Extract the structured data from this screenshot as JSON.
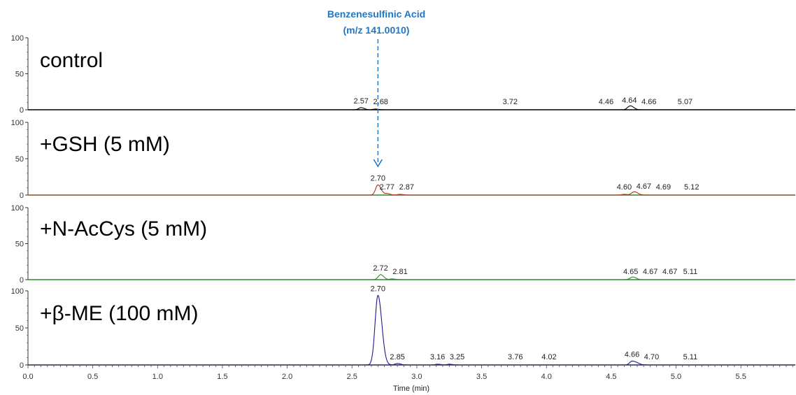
{
  "chart_data": {
    "type": "line",
    "xlabel": "Time (min)",
    "xlim": [
      0.0,
      5.92
    ],
    "x_ticks": [
      "0.0",
      "0.5",
      "1.0",
      "1.5",
      "2.0",
      "2.5",
      "3.0",
      "3.5",
      "4.0",
      "4.5",
      "5.0",
      "5.5"
    ],
    "ylim": [
      0,
      100
    ],
    "y_ticks": [
      "0",
      "50",
      "100"
    ],
    "annotation": {
      "line1": "Benzenesulfinic Acid",
      "line2": "(m/z 141.0010)",
      "x": 2.7,
      "color": "#1f77c4"
    },
    "panels": [
      {
        "title": "control",
        "color": "#000000",
        "peaks": [
          {
            "label": "2.57",
            "x": 2.57,
            "height": 3
          },
          {
            "label": "2.68",
            "x": 2.68,
            "height": 1
          },
          {
            "label": "3.72",
            "x": 3.72,
            "height": 0
          },
          {
            "label": "4.46",
            "x": 4.46,
            "height": 0
          },
          {
            "label": "4.64",
            "x": 4.64,
            "height": 4
          },
          {
            "label": "4.66",
            "x": 4.66,
            "height": 2
          },
          {
            "label": "5.07",
            "x": 5.07,
            "height": 0
          }
        ]
      },
      {
        "title": "+GSH (5 mM)",
        "color": "#b03020",
        "peaks": [
          {
            "label": "2.70",
            "x": 2.7,
            "height": 14
          },
          {
            "label": "2.77",
            "x": 2.77,
            "height": 2
          },
          {
            "label": "2.87",
            "x": 2.87,
            "height": 1
          },
          {
            "label": "4.60",
            "x": 4.6,
            "height": 1
          },
          {
            "label": "4.67",
            "x": 4.67,
            "height": 3
          },
          {
            "label": "4.69",
            "x": 4.69,
            "height": 2
          },
          {
            "label": "5.12",
            "x": 5.12,
            "height": 0
          }
        ]
      },
      {
        "title": "+N-AcCys (5 mM)",
        "color": "#2a8a2a",
        "peaks": [
          {
            "label": "2.72",
            "x": 2.72,
            "height": 7
          },
          {
            "label": "2.81",
            "x": 2.81,
            "height": 1
          },
          {
            "label": "4.65",
            "x": 4.65,
            "height": 1
          },
          {
            "label": "4.67",
            "x": 4.67,
            "height": 2
          },
          {
            "label": "4.67",
            "x": 4.67,
            "height": 1
          },
          {
            "label": "5.11",
            "x": 5.11,
            "height": 0
          }
        ]
      },
      {
        "title": "+β-ME (100 mM)",
        "color": "#1a1a8c",
        "peaks": [
          {
            "label": "2.70",
            "x": 2.7,
            "height": 94
          },
          {
            "label": "2.85",
            "x": 2.85,
            "height": 2
          },
          {
            "label": "3.16",
            "x": 3.16,
            "height": 1
          },
          {
            "label": "3.25",
            "x": 3.25,
            "height": 1
          },
          {
            "label": "3.76",
            "x": 3.76,
            "height": 0
          },
          {
            "label": "4.02",
            "x": 4.02,
            "height": 0
          },
          {
            "label": "4.66",
            "x": 4.66,
            "height": 5
          },
          {
            "label": "4.70",
            "x": 4.7,
            "height": 2
          },
          {
            "label": "5.11",
            "x": 5.11,
            "height": 0
          }
        ]
      }
    ]
  }
}
